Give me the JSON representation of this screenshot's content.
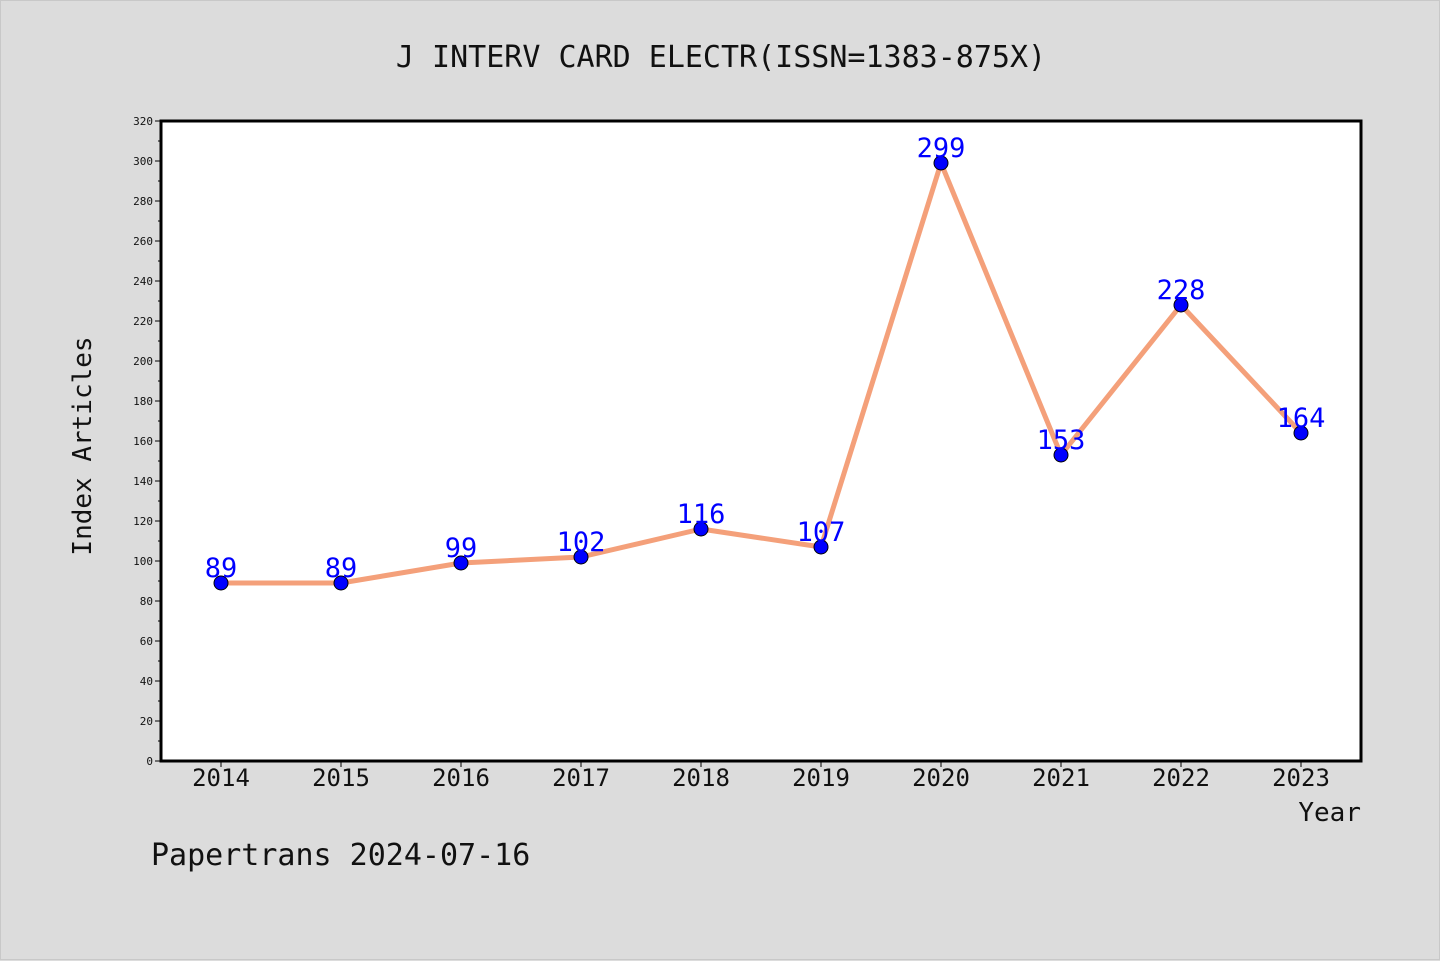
{
  "chart_data": {
    "type": "line",
    "title": "J INTERV CARD ELECTR(ISSN=1383-875X)",
    "xlabel": "Year",
    "ylabel": "Index Articles",
    "categories": [
      "2014",
      "2015",
      "2016",
      "2017",
      "2018",
      "2019",
      "2020",
      "2021",
      "2022",
      "2023"
    ],
    "series": [
      {
        "values": [
          89,
          89,
          99,
          102,
          116,
          107,
          299,
          153,
          228,
          164
        ]
      }
    ],
    "data_labels": [
      "89",
      "89",
      "99",
      "102",
      "116",
      "107",
      "299",
      "153",
      "228",
      "164"
    ],
    "ylim": [
      0,
      320
    ],
    "yticks": [
      "0",
      "20",
      "40",
      "60",
      "80",
      "100",
      "120",
      "140",
      "160",
      "180",
      "200",
      "220",
      "240",
      "260",
      "280",
      "300",
      "320"
    ],
    "grid": false,
    "legend": "none",
    "colors": {
      "line": "#f4a07a",
      "marker": "#0000ff",
      "label": "#0000ff",
      "background": "#dcdcdc",
      "plot": "#ffffff"
    }
  },
  "footer": {
    "text": "Papertrans 2024-07-16"
  }
}
